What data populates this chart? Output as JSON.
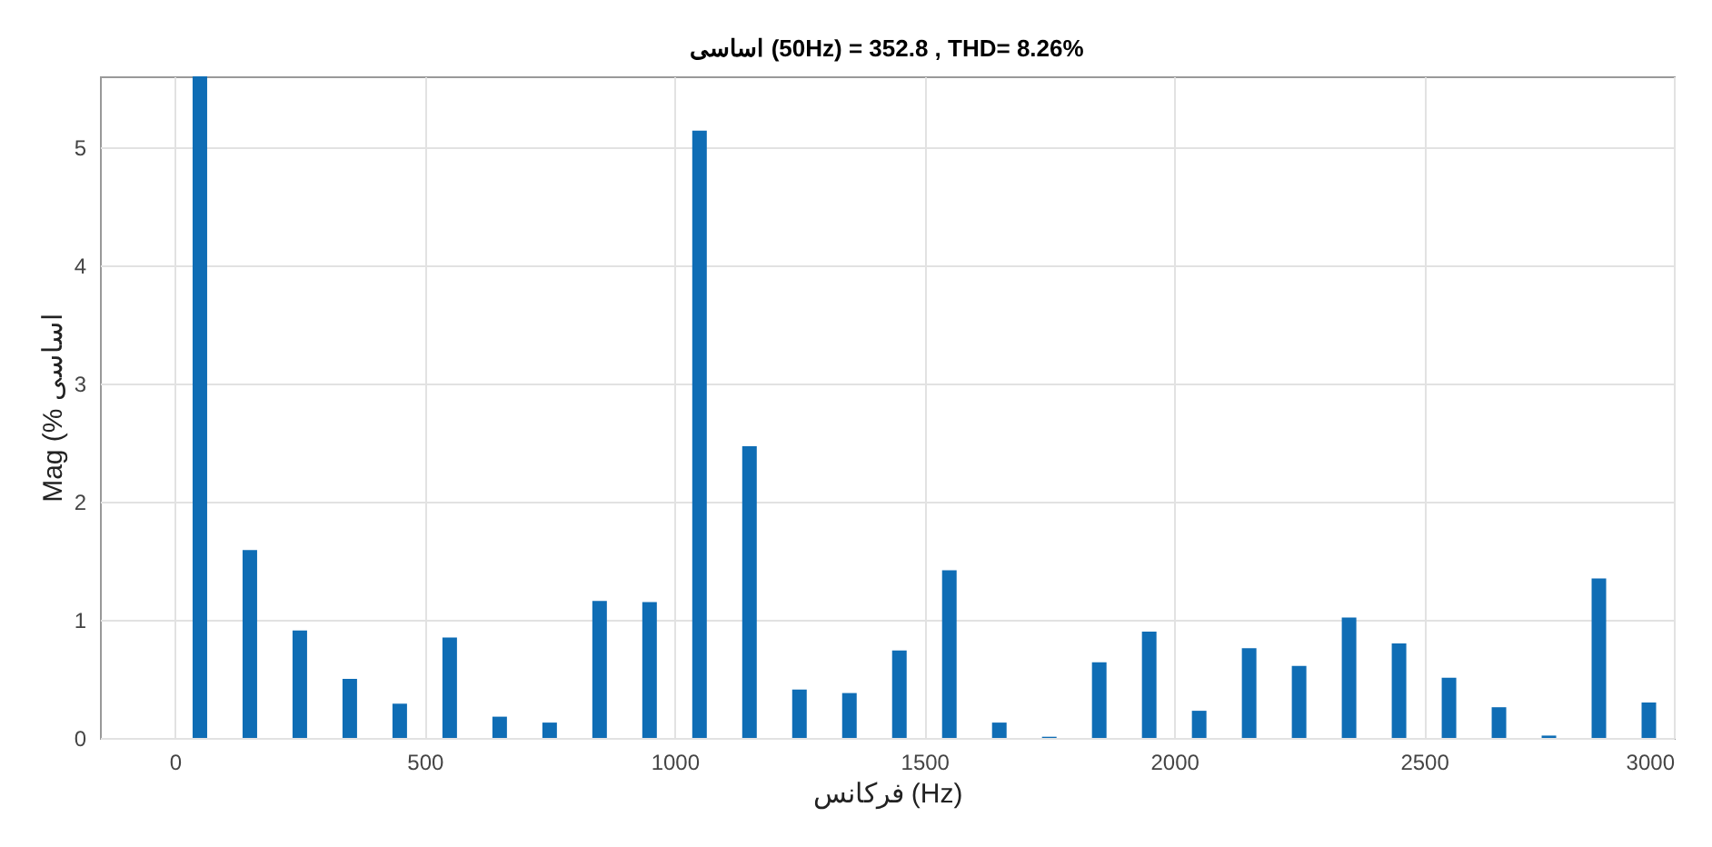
{
  "chart_data": {
    "type": "bar",
    "title": "اساسی (50Hz) = 352.8 , THD= 8.26%",
    "xlabel": "فرکانس (Hz)",
    "ylabel": "Mag (% اساسی",
    "x": [
      50,
      150,
      250,
      350,
      450,
      550,
      650,
      750,
      850,
      950,
      1050,
      1150,
      1250,
      1350,
      1450,
      1550,
      1650,
      1750,
      1850,
      1950,
      2050,
      2150,
      2250,
      2350,
      2450,
      2550,
      2650,
      2750,
      2850,
      2950
    ],
    "series": [
      {
        "color": "#0f6db5",
        "values": [
          5.6,
          1.59,
          0.91,
          0.5,
          0.29,
          0.85,
          0.18,
          0.13,
          1.16,
          1.15,
          5.14,
          2.47,
          0.41,
          0.38,
          0.74,
          1.42,
          0.13,
          0.01,
          0.64,
          0.9,
          0.23,
          0.76,
          0.61,
          1.02,
          0.8,
          0.51,
          0.26,
          0.02,
          1.35,
          0.3
        ]
      }
    ],
    "xlim": [
      -150,
      3000
    ],
    "xticks": [
      0,
      500,
      1000,
      1500,
      2000,
      2500,
      3000
    ],
    "ylim": [
      0,
      5.6
    ],
    "yticks": [
      0,
      1,
      2,
      3,
      4,
      5
    ],
    "grid": true
  }
}
